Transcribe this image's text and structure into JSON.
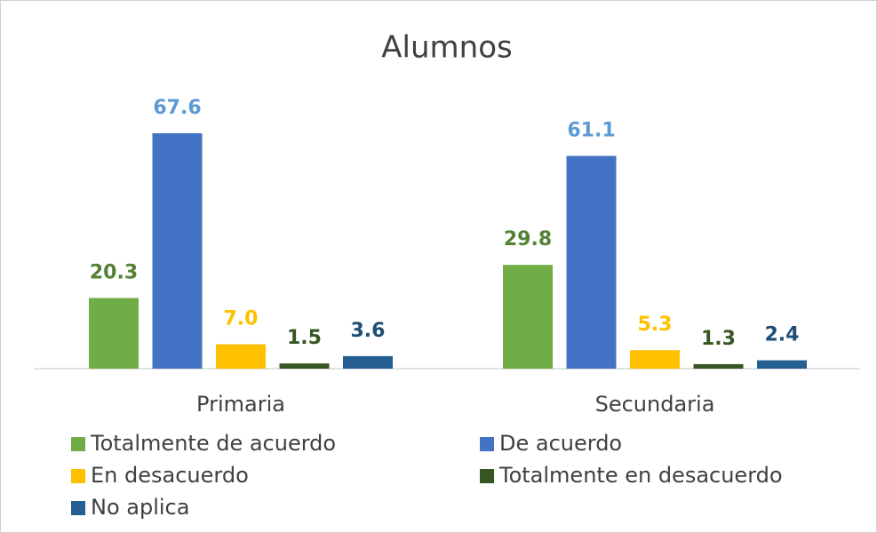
{
  "chart_data": {
    "type": "bar",
    "title": "Alumnos",
    "categories": [
      "Primaria",
      "Secundaria"
    ],
    "series": [
      {
        "name": "Totalmente de acuerdo",
        "color": "#70ad47",
        "label_color": "#548235",
        "values": [
          20.3,
          29.8
        ]
      },
      {
        "name": "De acuerdo",
        "color": "#4472c4",
        "label_color": "#5b9bd5",
        "values": [
          67.6,
          61.1
        ]
      },
      {
        "name": "En desacuerdo",
        "color": "#ffc000",
        "label_color": "#ffc000",
        "values": [
          7,
          5.3
        ],
        "value_labels": [
          "7.0",
          "5.3"
        ]
      },
      {
        "name": "Totalmente en desacuerdo",
        "color": "#375623",
        "label_color": "#375623",
        "values": [
          1.5,
          1.3
        ]
      },
      {
        "name": "No aplica",
        "color": "#255e91",
        "label_color": "#1f4e79",
        "values": [
          3.6,
          2.4
        ]
      }
    ],
    "legend": "bottom"
  }
}
